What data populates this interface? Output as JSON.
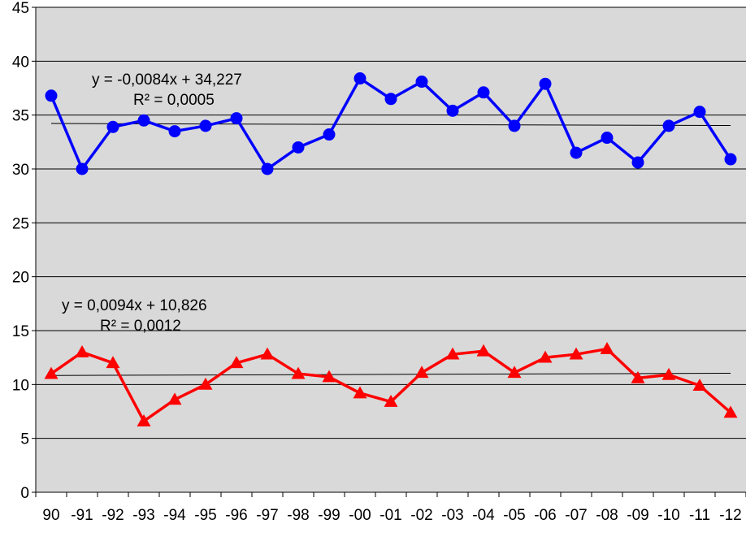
{
  "chart_data": {
    "type": "line",
    "categories": [
      "90",
      "-91",
      "-92",
      "-93",
      "-94",
      "-95",
      "-96",
      "-97",
      "-98",
      "-99",
      "-00",
      "-01",
      "-02",
      "-03",
      "-04",
      "-05",
      "-06",
      "-07",
      "-08",
      "-09",
      "-10",
      "-11",
      "-12"
    ],
    "ylim": [
      0,
      45
    ],
    "yticks": [
      "0",
      "5",
      "10",
      "15",
      "20",
      "25",
      "30",
      "35",
      "40",
      "45"
    ],
    "grid": true,
    "series": [
      {
        "marker": "circle",
        "color": "#0000ff",
        "values": [
          36.8,
          30.0,
          33.9,
          34.5,
          33.5,
          34.0,
          34.7,
          30.0,
          32.0,
          33.2,
          38.4,
          36.5,
          38.1,
          35.4,
          37.1,
          34.0,
          37.9,
          31.5,
          32.9,
          30.6,
          34.0,
          35.3,
          30.9
        ],
        "trendline": {
          "slope": -0.0084,
          "intercept": 34.227,
          "equation": "y = -0,0084x  + 34,227",
          "r2": "R² = 0,0005"
        }
      },
      {
        "marker": "triangle",
        "color": "#ff0000",
        "values": [
          11.0,
          13.0,
          12.0,
          6.6,
          8.6,
          10.0,
          12.0,
          12.8,
          11.0,
          10.7,
          9.2,
          8.4,
          11.1,
          12.8,
          13.1,
          11.1,
          12.5,
          12.8,
          13.3,
          10.6,
          10.9,
          9.9,
          7.4
        ],
        "trendline": {
          "slope": 0.0094,
          "intercept": 10.826,
          "equation": "y = 0,0094x  + 10,826",
          "r2": "R² = 0,0012"
        }
      }
    ],
    "plot_background": "#d9d9d9",
    "gridline_color": "#000000",
    "trendline_color": "#000000"
  }
}
